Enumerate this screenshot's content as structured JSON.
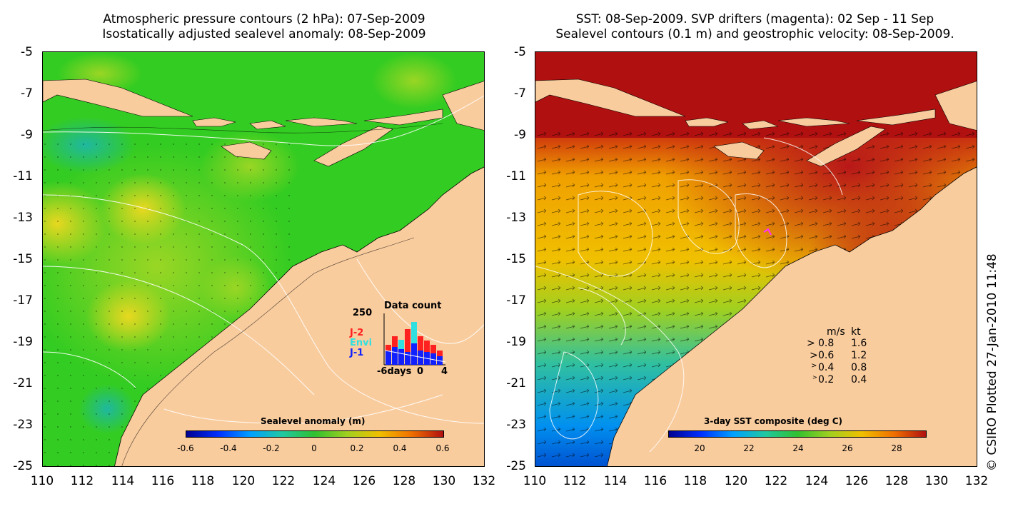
{
  "left_panel": {
    "title_line1": "Atmospheric pressure contours (2 hPa): 07-Sep-2009",
    "title_line2": "Isostatically adjusted sealevel anomaly: 08-Sep-2009",
    "colorbar": {
      "label": "Sealevel anomaly (m)",
      "ticks": [
        "-0.6",
        "-0.4",
        "-0.2",
        "0",
        "0.2",
        "0.4",
        "0.6"
      ]
    },
    "data_count": {
      "title": "Data count",
      "max_label": "250",
      "series": [
        "J-2",
        "Envi",
        "J-1"
      ],
      "series_colors": [
        "#ff2020",
        "#30e0e0",
        "#1020ff"
      ],
      "x_labels": [
        "-6days",
        "0",
        "4"
      ]
    }
  },
  "right_panel": {
    "title_line1": "SST: 08-Sep-2009. SVP drifters (magenta): 02 Sep - 11 Sep",
    "title_line2": "Sealevel contours (0.1 m) and geostrophic velocity: 08-Sep-2009.",
    "colorbar": {
      "label": "3-day SST composite (deg C)",
      "ticks": [
        "20",
        "22",
        "24",
        "26",
        "28"
      ]
    },
    "velocity_legend": {
      "header_ms": "m/s",
      "header_kt": "kt",
      "rows": [
        {
          "ms": "0.8",
          "kt": "1.6"
        },
        {
          "ms": "0.6",
          "kt": "1.2"
        },
        {
          "ms": "0.4",
          "kt": "0.8"
        },
        {
          "ms": "0.2",
          "kt": "0.4"
        }
      ]
    }
  },
  "axes": {
    "y_ticks": [
      "-5",
      "-7",
      "-9",
      "-11",
      "-13",
      "-15",
      "-17",
      "-19",
      "-21",
      "-23",
      "-25"
    ],
    "x_ticks": [
      "110",
      "112",
      "114",
      "116",
      "118",
      "120",
      "122",
      "124",
      "126",
      "128",
      "130",
      "132"
    ]
  },
  "credit": "© CSIRO Plotted 27-Jan-2010 11:48",
  "colors": {
    "land": "#f9cc9e",
    "ocean_left": "#33cc22",
    "ocean_right": "#b01010"
  }
}
